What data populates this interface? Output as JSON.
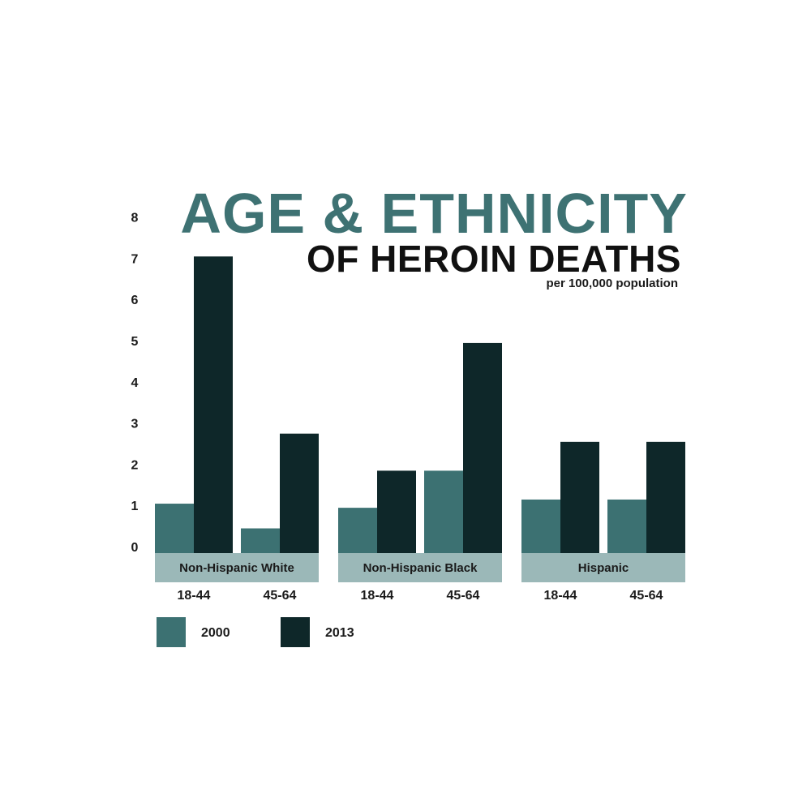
{
  "chart_data": {
    "type": "bar",
    "title": "AGE & ETHNICITY",
    "title_line2": "OF HEROIN DEATHS",
    "subtitle": "per 100,000 population",
    "ylim": [
      0,
      8
    ],
    "yticks": [
      "0",
      "1",
      "2",
      "3",
      "4",
      "5",
      "6",
      "7",
      "8"
    ],
    "grid": false,
    "legend_position": "bottom-left",
    "groups": [
      {
        "name": "Non-Hispanic White",
        "categories": [
          "18-44",
          "45-64"
        ]
      },
      {
        "name": "Non-Hispanic Black",
        "categories": [
          "18-44",
          "45-64"
        ]
      },
      {
        "name": "Hispanic",
        "categories": [
          "18-44",
          "45-64"
        ]
      }
    ],
    "series": [
      {
        "name": "2000",
        "color": "#3c7172",
        "values": [
          1.2,
          0.6,
          1.1,
          2.0,
          1.3,
          1.3
        ]
      },
      {
        "name": "2013",
        "color": "#0e2729",
        "values": [
          7.2,
          2.9,
          2.0,
          5.1,
          2.7,
          2.7
        ]
      }
    ],
    "colors": {
      "title_accent": "#3e7273",
      "title_dark": "#111111",
      "group_band": "#9bb8b8"
    }
  }
}
